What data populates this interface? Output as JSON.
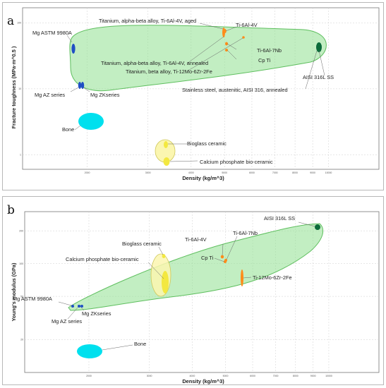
{
  "chart_data": [
    {
      "panel_label": "a",
      "type": "scatter",
      "xlabel": "Density (kg/m^3)",
      "ylabel": "Fracture toughness (MPa·m^0.5 )",
      "xscale": "log",
      "yscale": "log",
      "xlim": [
        1300,
        14000
      ],
      "ylim": [
        0.6,
        170
      ],
      "x_ticks": [
        2000,
        3000,
        4000,
        5000,
        6000,
        7000,
        8000,
        9000,
        10000
      ],
      "x_tick_labels": [
        "2000",
        "3000",
        "4000",
        "5000",
        "6000",
        "7000",
        "8000",
        "9000",
        "10000"
      ],
      "y_ticks": [
        1,
        10,
        100
      ],
      "y_tick_labels": [
        "1",
        "10",
        "100"
      ],
      "grid": true,
      "points": [
        {
          "label": "Mg ASTM 9980A",
          "x": 1800,
          "y": 82,
          "color": "#1f4fc4"
        },
        {
          "label": "Mg AZ series",
          "x": 1780,
          "y": 16.5,
          "color": "#1f4fc4"
        },
        {
          "label": "Mg ZKseries",
          "x": 1830,
          "y": 16.5,
          "color": "#1f4fc4"
        },
        {
          "label": "Bone",
          "x": 1900,
          "y": 4,
          "color": "#00e0ee"
        },
        {
          "label": "Titanium, alpha-beta alloy, Ti-6Al-4V, aged",
          "x": 4420,
          "y": 105,
          "color": "#ff8c1a"
        },
        {
          "label": "Ti-6Al-4V",
          "x": 4430,
          "y": 92,
          "color": "#ff8c1a"
        },
        {
          "label": "Ti-6Al-7Nb",
          "x": 4520,
          "y": 88,
          "color": "#ff8c1a"
        },
        {
          "label": "Cp Ti",
          "x": 4510,
          "y": 65,
          "color": "#ff8c1a"
        },
        {
          "label": "Titanium, alpha-beta alloy, Ti-6Al-4V, annealed",
          "x": 4450,
          "y": 83,
          "color": "#ff8c1a"
        },
        {
          "label": "Titanium, beta alloy, Ti-12Mo-6Zr-2Fe",
          "x": 5000,
          "y": 82,
          "color": "#ff8c1a"
        },
        {
          "label": "AISI 316L SS",
          "x": 8000,
          "y": 85,
          "color": "#0b6b3a"
        },
        {
          "label": "Stainless steel, austenitic, AISI 316, annealed",
          "x": 7950,
          "y": 78,
          "color": "#0b6b3a"
        },
        {
          "label": "Bioglass ceramic",
          "x": 3130,
          "y": 2.0,
          "color": "#f3e840"
        },
        {
          "label": "Calcium phosphate bio-ceramic",
          "x": 3150,
          "y": 1.15,
          "color": "#f3e840"
        }
      ],
      "envelope": {
        "label": "Metals",
        "color": "#8fe08f"
      }
    },
    {
      "panel_label": "b",
      "type": "scatter",
      "xlabel": "Density (kg/m^3)",
      "ylabel": "Young's modulus (GPa)",
      "xscale": "log",
      "yscale": "log",
      "xlim": [
        1300,
        14000
      ],
      "ylim": [
        10,
        300
      ],
      "x_ticks": [
        2000,
        3000,
        4000,
        5000,
        6000,
        7000,
        8000,
        9000,
        10000
      ],
      "x_tick_labels": [
        "2000",
        "3000",
        "4000",
        "5000",
        "6000",
        "7000",
        "8000",
        "9000",
        "10000"
      ],
      "y_ticks": [
        20,
        50,
        100,
        200
      ],
      "y_tick_labels": [
        "20",
        "50",
        "100",
        "200"
      ],
      "grid": true,
      "points": [
        {
          "label": "AISI 316L SS",
          "x": 8000,
          "y": 195,
          "color": "#0b6b3a"
        },
        {
          "label": "Ti-6Al-4V",
          "x": 4420,
          "y": 112,
          "color": "#ff8c1a"
        },
        {
          "label": "Ti-6Al-7Nb",
          "x": 4520,
          "y": 104,
          "color": "#ff8c1a"
        },
        {
          "label": "Cp Ti",
          "x": 4510,
          "y": 102,
          "color": "#ff8c1a"
        },
        {
          "label": "Ti-12Mo-6Zr-2Fe",
          "x": 5000,
          "y": 75,
          "color": "#ff8c1a"
        },
        {
          "label": "Bioglass ceramic",
          "x": 3140,
          "y": 115,
          "color": "#f3e840"
        },
        {
          "label": "Calcium phosphate bio-ceramic",
          "x": 3160,
          "y": 65,
          "color": "#f3e840"
        },
        {
          "label": "Mg ASTM 9980A",
          "x": 1750,
          "y": 44,
          "color": "#1f4fc4"
        },
        {
          "label": "Mg AZ series",
          "x": 1780,
          "y": 44,
          "color": "#1f4fc4"
        },
        {
          "label": "Mg ZKseries",
          "x": 1830,
          "y": 44,
          "color": "#1f4fc4"
        },
        {
          "label": "Bone",
          "x": 1900,
          "y": 20,
          "color": "#00e0ee"
        }
      ],
      "envelope": {
        "label": "Metals",
        "color": "#8fe08f"
      }
    }
  ]
}
